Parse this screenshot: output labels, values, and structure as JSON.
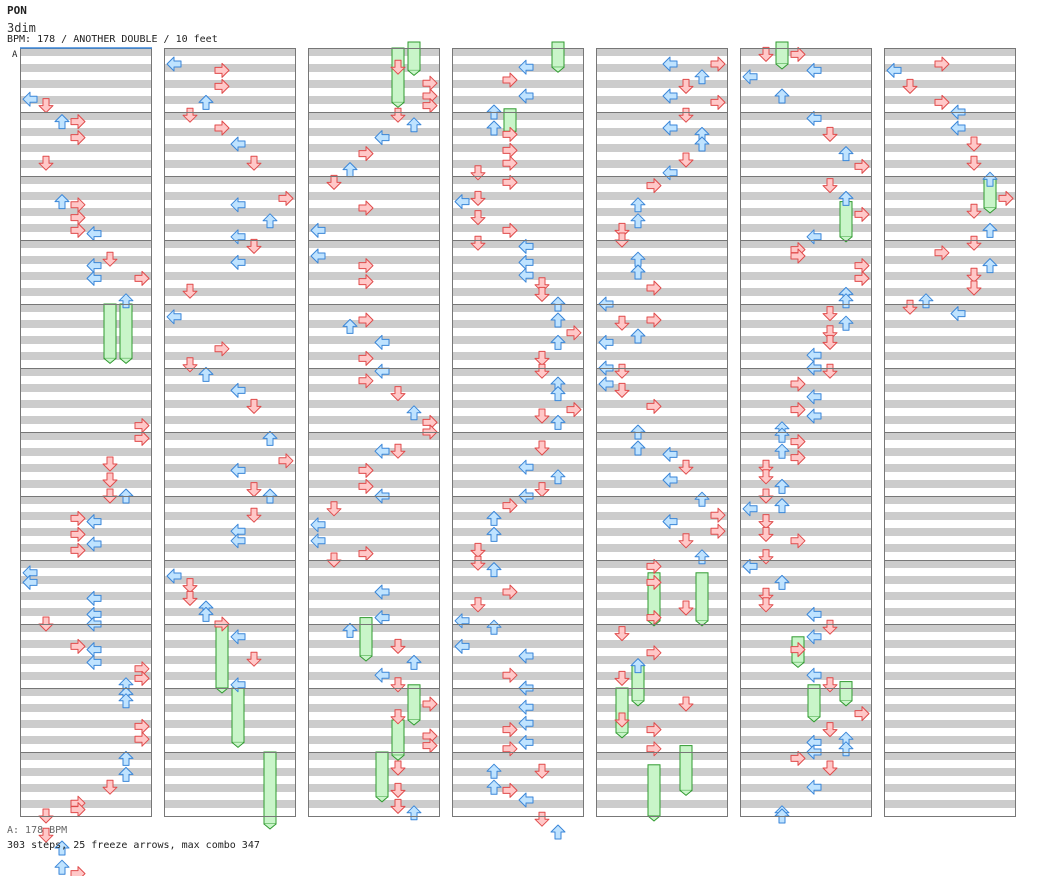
{
  "song": {
    "title": "PON",
    "artist": "3dim",
    "info": "BPM: 178 / ANOTHER DOUBLE / 10 feet",
    "section_marker": "A"
  },
  "footer": {
    "bpm_line": "A: 178 BPM",
    "stats_line": "303 steps, 25 freeze arrows, max combo 347"
  },
  "colors": {
    "stripe": "#cccccc",
    "background": "#ffffff",
    "measure_line": "#777777",
    "arrow_left_down": "#ffc8c8",
    "arrow_left_down_stroke": "#e04b4b",
    "arrow_up_right": "#bfe3ff",
    "arrow_up_right_stroke": "#3a86d8",
    "freeze_fill": "#c9f5c9",
    "freeze_stroke": "#2f9a2f"
  },
  "lanes": [
    "L1",
    "D1",
    "U1",
    "R1",
    "L2",
    "D2",
    "U2",
    "R2"
  ],
  "columns": [
    {
      "notes": [
        [
          0.8,
          0
        ],
        [
          0.9,
          1
        ],
        [
          1.15,
          2
        ],
        [
          1.15,
          3
        ],
        [
          1.4,
          3
        ],
        [
          1.8,
          1
        ],
        [
          2.4,
          2
        ],
        [
          2.45,
          3
        ],
        [
          2.65,
          3
        ],
        [
          2.85,
          3
        ],
        [
          2.9,
          4
        ],
        [
          3.3,
          5
        ],
        [
          3.4,
          4
        ],
        [
          3.6,
          4
        ],
        [
          3.6,
          7
        ],
        [
          3.95,
          6
        ],
        [
          5.9,
          7
        ],
        [
          6.1,
          7
        ],
        [
          6.5,
          5
        ],
        [
          6.75,
          5
        ],
        [
          7.0,
          5
        ],
        [
          7.0,
          6
        ],
        [
          7.35,
          3
        ],
        [
          7.4,
          4
        ],
        [
          7.6,
          3
        ],
        [
          7.75,
          4
        ],
        [
          7.85,
          3
        ],
        [
          8.2,
          0
        ],
        [
          8.35,
          0
        ],
        [
          8.6,
          4
        ],
        [
          8.85,
          4
        ],
        [
          9.0,
          4
        ],
        [
          9.0,
          1
        ],
        [
          9.35,
          3
        ],
        [
          9.4,
          4
        ],
        [
          9.6,
          4
        ],
        [
          9.7,
          7
        ],
        [
          9.85,
          7
        ],
        [
          9.95,
          6
        ],
        [
          10.1,
          6
        ],
        [
          10.2,
          6
        ],
        [
          10.6,
          7
        ],
        [
          10.8,
          7
        ],
        [
          11.1,
          6
        ],
        [
          11.35,
          6
        ],
        [
          11.55,
          5
        ],
        [
          11.8,
          3
        ],
        [
          11.9,
          3
        ],
        [
          12.0,
          1
        ],
        [
          12.3,
          1
        ],
        [
          12.5,
          2
        ],
        [
          12.8,
          2
        ],
        [
          12.9,
          3
        ]
      ],
      "freezes": [
        [
          4.0,
          4.85,
          5
        ],
        [
          4.0,
          4.85,
          6
        ]
      ]
    },
    {
      "notes": [
        [
          0.25,
          0
        ],
        [
          0.35,
          3
        ],
        [
          0.6,
          3
        ],
        [
          0.85,
          2
        ],
        [
          1.05,
          1
        ],
        [
          1.25,
          3
        ],
        [
          1.5,
          4
        ],
        [
          1.8,
          5
        ],
        [
          2.35,
          7
        ],
        [
          2.45,
          4
        ],
        [
          2.7,
          6
        ],
        [
          2.95,
          4
        ],
        [
          3.1,
          5
        ],
        [
          3.35,
          4
        ],
        [
          3.8,
          1
        ],
        [
          4.2,
          0
        ],
        [
          4.7,
          3
        ],
        [
          4.95,
          1
        ],
        [
          5.1,
          2
        ],
        [
          5.35,
          4
        ],
        [
          5.6,
          5
        ],
        [
          6.1,
          6
        ],
        [
          6.45,
          7
        ],
        [
          6.6,
          4
        ],
        [
          6.9,
          5
        ],
        [
          7.0,
          6
        ],
        [
          7.3,
          5
        ],
        [
          7.55,
          4
        ],
        [
          7.7,
          4
        ],
        [
          8.25,
          0
        ],
        [
          8.4,
          1
        ],
        [
          8.6,
          1
        ],
        [
          8.75,
          2
        ],
        [
          8.85,
          2
        ],
        [
          9.0,
          3
        ],
        [
          9.2,
          4
        ],
        [
          9.55,
          5
        ],
        [
          9.95,
          4
        ]
      ],
      "freezes": [
        [
          9.0,
          10.0,
          3
        ],
        [
          10.0,
          10.85,
          4
        ],
        [
          11.0,
          12.2,
          6
        ]
      ]
    },
    {
      "notes": [
        [
          0.3,
          5
        ],
        [
          0.55,
          7
        ],
        [
          0.75,
          7
        ],
        [
          0.9,
          7
        ],
        [
          1.05,
          5
        ],
        [
          1.2,
          6
        ],
        [
          1.4,
          4
        ],
        [
          1.65,
          3
        ],
        [
          1.9,
          2
        ],
        [
          2.1,
          1
        ],
        [
          2.5,
          3
        ],
        [
          2.85,
          0
        ],
        [
          3.25,
          0
        ],
        [
          3.4,
          3
        ],
        [
          3.65,
          3
        ],
        [
          4.25,
          3
        ],
        [
          4.35,
          2
        ],
        [
          4.6,
          4
        ],
        [
          4.85,
          3
        ],
        [
          5.05,
          4
        ],
        [
          5.2,
          3
        ],
        [
          5.4,
          5
        ],
        [
          5.7,
          6
        ],
        [
          5.85,
          7
        ],
        [
          6.0,
          7
        ],
        [
          6.3,
          4
        ],
        [
          6.3,
          5
        ],
        [
          6.6,
          3
        ],
        [
          6.85,
          3
        ],
        [
          7.0,
          4
        ],
        [
          7.2,
          1
        ],
        [
          7.45,
          0
        ],
        [
          7.7,
          0
        ],
        [
          7.9,
          3
        ],
        [
          8.0,
          1
        ],
        [
          8.5,
          4
        ],
        [
          8.9,
          4
        ],
        [
          9.1,
          2
        ],
        [
          9.35,
          5
        ],
        [
          9.6,
          6
        ],
        [
          9.8,
          4
        ],
        [
          9.95,
          5
        ],
        [
          10.25,
          7
        ],
        [
          10.45,
          5
        ],
        [
          10.75,
          7
        ],
        [
          10.9,
          7
        ],
        [
          11.25,
          5
        ],
        [
          11.6,
          5
        ],
        [
          11.85,
          5
        ],
        [
          11.95,
          6
        ]
      ],
      "freezes": [
        [
          -0.1,
          0.35,
          6
        ],
        [
          0.0,
          0.85,
          5
        ],
        [
          8.9,
          9.5,
          3
        ],
        [
          9.95,
          10.5,
          6
        ],
        [
          10.5,
          11.05,
          5
        ],
        [
          11.0,
          11.7,
          4
        ]
      ]
    },
    {
      "notes": [
        [
          0.3,
          4
        ],
        [
          0.5,
          3
        ],
        [
          0.75,
          4
        ],
        [
          1.0,
          2
        ],
        [
          1.25,
          2
        ],
        [
          1.35,
          3
        ],
        [
          1.6,
          3
        ],
        [
          1.8,
          3
        ],
        [
          1.95,
          1
        ],
        [
          2.1,
          3
        ],
        [
          2.35,
          1
        ],
        [
          2.4,
          0
        ],
        [
          2.65,
          1
        ],
        [
          2.85,
          3
        ],
        [
          3.05,
          1
        ],
        [
          3.1,
          4
        ],
        [
          3.35,
          4
        ],
        [
          3.55,
          4
        ],
        [
          3.7,
          5
        ],
        [
          3.85,
          5
        ],
        [
          4.0,
          6
        ],
        [
          4.25,
          6
        ],
        [
          4.45,
          7
        ],
        [
          4.6,
          6
        ],
        [
          4.85,
          5
        ],
        [
          5.05,
          5
        ],
        [
          5.25,
          6
        ],
        [
          5.4,
          6
        ],
        [
          5.65,
          7
        ],
        [
          5.75,
          5
        ],
        [
          5.85,
          6
        ],
        [
          6.25,
          5
        ],
        [
          6.55,
          4
        ],
        [
          6.7,
          6
        ],
        [
          6.9,
          5
        ],
        [
          7.0,
          4
        ],
        [
          7.15,
          3
        ],
        [
          7.35,
          2
        ],
        [
          7.6,
          2
        ],
        [
          7.85,
          1
        ],
        [
          8.05,
          1
        ],
        [
          8.15,
          2
        ],
        [
          8.5,
          3
        ],
        [
          8.7,
          1
        ],
        [
          8.95,
          0
        ],
        [
          9.05,
          2
        ],
        [
          9.35,
          0
        ],
        [
          9.5,
          4
        ],
        [
          9.8,
          3
        ],
        [
          10.0,
          4
        ],
        [
          10.3,
          4
        ],
        [
          10.55,
          4
        ],
        [
          10.65,
          3
        ],
        [
          10.85,
          4
        ],
        [
          10.95,
          3
        ],
        [
          11.3,
          2
        ],
        [
          11.3,
          5
        ],
        [
          11.55,
          2
        ],
        [
          11.6,
          3
        ],
        [
          11.75,
          4
        ],
        [
          12.05,
          5
        ],
        [
          12.25,
          6
        ]
      ],
      "freezes": [
        [
          -0.1,
          0.3,
          6
        ],
        [
          0.95,
          1.3,
          3
        ]
      ]
    },
    {
      "notes": [
        [
          0.25,
          4
        ],
        [
          0.25,
          7
        ],
        [
          0.45,
          6
        ],
        [
          0.6,
          5
        ],
        [
          0.75,
          4
        ],
        [
          0.85,
          7
        ],
        [
          1.05,
          5
        ],
        [
          1.25,
          4
        ],
        [
          1.35,
          6
        ],
        [
          1.5,
          6
        ],
        [
          1.75,
          5
        ],
        [
          1.95,
          4
        ],
        [
          2.15,
          3
        ],
        [
          2.45,
          2
        ],
        [
          2.7,
          2
        ],
        [
          2.85,
          1
        ],
        [
          3.0,
          1
        ],
        [
          3.3,
          2
        ],
        [
          3.5,
          2
        ],
        [
          3.75,
          3
        ],
        [
          4.0,
          0
        ],
        [
          4.3,
          1
        ],
        [
          4.25,
          3
        ],
        [
          4.5,
          2
        ],
        [
          4.6,
          0
        ],
        [
          5.05,
          1
        ],
        [
          5.0,
          0
        ],
        [
          5.25,
          0
        ],
        [
          5.35,
          1
        ],
        [
          5.6,
          3
        ],
        [
          6.0,
          2
        ],
        [
          6.25,
          2
        ],
        [
          6.35,
          4
        ],
        [
          6.55,
          5
        ],
        [
          6.75,
          4
        ],
        [
          7.05,
          6
        ],
        [
          7.3,
          7
        ],
        [
          7.4,
          4
        ],
        [
          7.55,
          7
        ],
        [
          7.7,
          5
        ],
        [
          7.95,
          6
        ],
        [
          8.1,
          3
        ],
        [
          8.35,
          3
        ],
        [
          8.75,
          5
        ],
        [
          8.9,
          3
        ],
        [
          9.15,
          1
        ],
        [
          9.45,
          3
        ],
        [
          9.65,
          2
        ],
        [
          9.85,
          1
        ],
        [
          10.25,
          5
        ],
        [
          10.5,
          1
        ],
        [
          10.65,
          3
        ],
        [
          10.95,
          3
        ]
      ],
      "freezes": [
        [
          8.2,
          8.95,
          6
        ],
        [
          8.2,
          8.95,
          3
        ],
        [
          9.65,
          10.2,
          2
        ],
        [
          10.0,
          10.7,
          1
        ],
        [
          10.9,
          11.6,
          5
        ],
        [
          11.2,
          12.0,
          3
        ]
      ]
    },
    {
      "notes": [
        [
          0.1,
          1
        ],
        [
          0.1,
          3
        ],
        [
          0.35,
          4
        ],
        [
          0.45,
          0
        ],
        [
          0.75,
          2
        ],
        [
          1.1,
          4
        ],
        [
          1.35,
          5
        ],
        [
          1.65,
          6
        ],
        [
          1.85,
          7
        ],
        [
          2.15,
          5
        ],
        [
          2.35,
          6
        ],
        [
          2.6,
          7
        ],
        [
          2.95,
          4
        ],
        [
          3.15,
          3
        ],
        [
          3.25,
          3
        ],
        [
          3.4,
          7
        ],
        [
          3.6,
          7
        ],
        [
          3.85,
          6
        ],
        [
          3.95,
          6
        ],
        [
          4.15,
          5
        ],
        [
          4.3,
          6
        ],
        [
          4.45,
          5
        ],
        [
          4.6,
          5
        ],
        [
          4.8,
          4
        ],
        [
          5.0,
          4
        ],
        [
          5.05,
          5
        ],
        [
          5.25,
          3
        ],
        [
          5.45,
          4
        ],
        [
          5.65,
          3
        ],
        [
          5.75,
          4
        ],
        [
          5.95,
          2
        ],
        [
          6.05,
          2
        ],
        [
          6.15,
          3
        ],
        [
          6.3,
          2
        ],
        [
          6.4,
          3
        ],
        [
          6.55,
          1
        ],
        [
          6.7,
          1
        ],
        [
          6.85,
          2
        ],
        [
          7.0,
          1
        ],
        [
          7.15,
          2
        ],
        [
          7.2,
          0
        ],
        [
          7.4,
          1
        ],
        [
          7.6,
          1
        ],
        [
          7.7,
          3
        ],
        [
          7.95,
          1
        ],
        [
          8.1,
          0
        ],
        [
          8.35,
          2
        ],
        [
          8.55,
          1
        ],
        [
          8.7,
          1
        ],
        [
          8.85,
          4
        ],
        [
          9.05,
          5
        ],
        [
          9.2,
          4
        ],
        [
          9.4,
          3
        ],
        [
          9.8,
          4
        ],
        [
          9.95,
          5
        ],
        [
          10.4,
          7
        ],
        [
          10.65,
          5
        ],
        [
          10.8,
          6
        ],
        [
          10.95,
          6
        ],
        [
          10.85,
          4
        ],
        [
          11.0,
          4
        ],
        [
          11.1,
          3
        ],
        [
          11.25,
          5
        ],
        [
          11.55,
          4
        ],
        [
          11.95,
          2
        ],
        [
          12.0,
          2
        ]
      ],
      "freezes": [
        [
          -0.1,
          0.25,
          2
        ],
        [
          2.4,
          2.95,
          6
        ],
        [
          9.2,
          9.6,
          3
        ],
        [
          9.9,
          10.2,
          6
        ],
        [
          9.95,
          10.45,
          4
        ]
      ]
    },
    {
      "notes": [
        [
          0.35,
          0
        ],
        [
          0.25,
          3
        ],
        [
          0.6,
          1
        ],
        [
          0.85,
          3
        ],
        [
          1.0,
          4
        ],
        [
          1.25,
          4
        ],
        [
          1.5,
          5
        ],
        [
          1.8,
          5
        ],
        [
          2.05,
          6
        ],
        [
          2.35,
          7
        ],
        [
          2.55,
          5
        ],
        [
          2.85,
          6
        ],
        [
          3.05,
          5
        ],
        [
          3.2,
          3
        ],
        [
          3.4,
          6
        ],
        [
          3.55,
          5
        ],
        [
          3.75,
          5
        ],
        [
          3.95,
          2
        ],
        [
          4.05,
          1
        ],
        [
          4.15,
          4
        ]
      ],
      "freezes": [
        [
          2.05,
          2.5,
          6
        ]
      ]
    }
  ]
}
